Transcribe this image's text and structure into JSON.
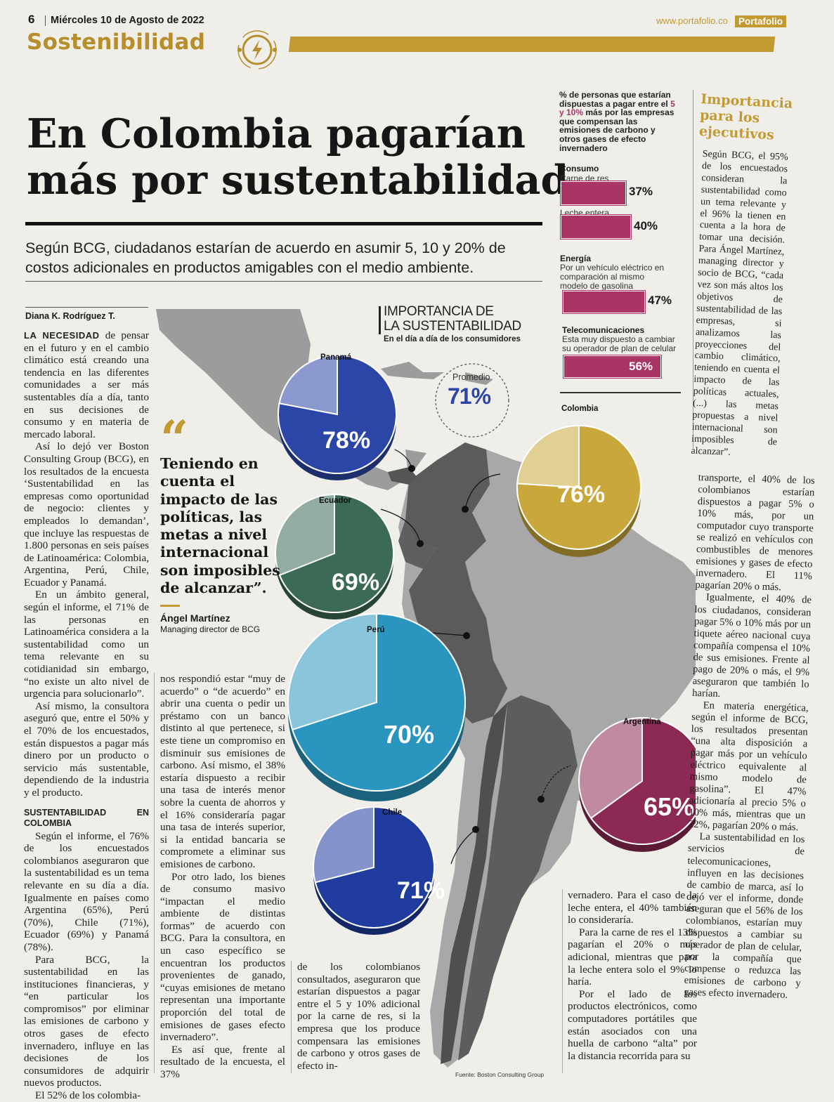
{
  "header": {
    "page_number": "6",
    "date": "Miércoles 10 de Agosto de 2022",
    "section": "Sostenibilidad",
    "website": "www.portafolio.co",
    "brand": "Portafolio"
  },
  "article": {
    "headline_line1": "En Colombia pagarían",
    "headline_line2": "más por sustentabilidad",
    "deck_line1": "Según BCG, ciudadanos estarían de acuerdo en asumir 5, 10 y 20% de",
    "deck_line2": "costos adicionales en productos amigables con el medio ambiente.",
    "byline": "Diana K. Rodríguez T.",
    "col1": [
      {
        "lead": "LA NECESIDAD",
        "text": " de pensar en el futuro y en el cambio climático está creando una tendencia en las diferentes comunidades a ser más sustentables día a día, tanto en sus decisiones de consumo y en materia de mercado laboral."
      },
      {
        "text": "Así lo dejó ver Boston Consulting Group (BCG), en los resultados de la encuesta ‘Sustentabilidad en las empresas como oportunidad de negocio: clientes y empleados lo demandan’, que incluye las respuestas de 1.800 personas en seis países de Latinoamérica: Colombia, Argentina, Perú, Chile, Ecuador y Panamá."
      },
      {
        "text": "En un ámbito general, según el informe, el 71% de las personas en Latinoamérica considera a la sustentabilidad como un tema relevante en su cotidianidad sin embargo, “no existe un alto nivel de urgencia para solucionarlo”."
      },
      {
        "text": "Así mismo, la consultora aseguró que, entre el 50% y el 70% de los encuestados, están dispuestos a pagar más dinero por un producto o servicio más sustentable, dependiendo de la industria y el producto."
      }
    ],
    "subhead": "SUSTENTABILIDAD EN COLOMBIA",
    "col1b": [
      {
        "text": "Según el informe, el 76% de los encuestados colombianos aseguraron que la sustentabilidad es un tema relevante en su día a día. Igualmente en países como Argentina (65%), Perú (70%), Chile (71%), Ecuador (69%) y Panamá (78%)."
      },
      {
        "text": "Para BCG, la sustentabilidad en las instituciones financieras, y “en particular los compromisos” por eliminar las emisiones de carbono y otros gases de efecto invernadero, influye en las decisiones de los consumidores de adquirir nuevos productos."
      },
      {
        "text": "El 52% de los colombia-"
      }
    ],
    "col2": [
      {
        "first": true,
        "text": "nos respondió estar “muy de acuerdo” o “de acuerdo” en abrir una cuenta o pedir un préstamo con un banco distinto al que pertenece, si este tiene un compromiso en disminuir sus emisiones de carbono. Así mismo, el 38% estaría dispuesto a recibir una tasa de interés menor sobre la cuenta de ahorros y el 16% consideraría pagar una tasa de interés superior, si la entidad bancaria se compromete a eliminar sus emisiones de carbono."
      },
      {
        "text": "Por otro lado, los bienes de consumo masivo “impactan el medio ambiente de distintas formas” de acuerdo con BCG. Para la consultora, en un caso específico se encuentran los productos provenientes de ganado, “cuyas emisiones de metano representan una importante proporción del total de emisiones de gases efecto invernadero”."
      },
      {
        "text": "Es así que, frente al resultado de la encuesta, el 37%"
      }
    ],
    "col3": [
      {
        "first": true,
        "text": "de los colombianos consultados, aseguraron que estarían dispuestos a pagar entre el 5 y 10% adicional por la carne de res, si la empresa que los produce compensara las emisiones de carbono y otros gases de efecto in-"
      }
    ],
    "col4": [
      {
        "first": true,
        "text": "vernadero. Para el caso de la leche entera, el 40% también lo consideraría."
      },
      {
        "text": "Para la carne de res el 13% pagarían el 20% o más adicional, mientras que para la leche entera solo el 9% lo haría."
      },
      {
        "text": "Por el lado de los productos electrónicos, como computadores portátiles que están asociados con una huella de carbono “alta” por la distancia recorrida para su"
      }
    ],
    "col5": [
      {
        "first": true,
        "text": "transporte, el 40% de los colombianos estarían dispuestos a pagar 5% o 10% más, por un computador cuyo transporte se realizó en vehículos con combustibles de menores emisiones y gases de efecto invernadero. El 11% pagarían 20% o más."
      },
      {
        "text": "Igualmente, el 40% de los ciudadanos, consideran pagar 5% o 10% más por un tiquete aéreo nacional cuya compañía compensa el 10% de sus emisiones. Frente al pago de 20% o más, el 9% aseguraron que también lo harían."
      },
      {
        "text": "En materia energética, según el informe de BCG, los resultados presentan “una alta disposición a pagar más por un vehículo eléctrico equivalente al mismo modelo de gasolina”. El 47% adicionaría al precio 5% o 10% más, mientras que un 22%, pagarían 20% o más."
      },
      {
        "text": "La sustentabilidad en los servicios de telecomunicaciones, influyen en las decisiones de cambio de marca, así lo dejó ver el informe, donde aseguran que el 56% de los colombianos, estarían muy dispuestos a cambiar su operador de plan de celular, por la compañía que compense o reduzca las emisiones de carbono y gases efecto invernadero."
      }
    ]
  },
  "quote": {
    "text": "Teniendo en cuenta el impacto de las políticas, las metas a nivel internacional son imposibles de alcanzar”.",
    "author": "Ángel Martínez",
    "role": "Managing director de BCG"
  },
  "sidebar": {
    "title": "Importancia para los ejecutivos",
    "text": "Según BCG, el 95% de los encuestados consideran la sustentabilidad como un tema relevante y el 96% la tienen en cuenta a la hora de tomar una decisión. Para Ángel Martínez, managing director y socio de BCG, “cada vez son más altos los objetivos de sustentabilidad de las empresas, si analizamos las proyecciones del cambio climático, teniendo en cuenta el impacto de las políticas actuales, (...) las metas propuestas a nivel internacional son imposibles de alcanzar”."
  },
  "bar_chart": {
    "title_pre": "% de personas que estarían dispuestas a pagar entre el ",
    "title_highlight": "5 y 10%",
    "title_post": " más por las empresas que compensan las emisiones de carbono y otros gases de efecto invernadero",
    "cat_consumo": "Consumo",
    "cat_energia": "Energía",
    "cat_tele": "Telecomunicaciones",
    "items": [
      {
        "label": "Carne de res",
        "display": "37%"
      },
      {
        "label": "Leche entera",
        "display": "40%"
      },
      {
        "label": "Por un vehículo eléctrico en comparación al mismo modelo de gasolina",
        "display": "47%"
      },
      {
        "label": "Esta muy dispuesto a cambiar su operador de plan de celular",
        "display": "56%"
      }
    ],
    "bar_color": "#a83566"
  },
  "map_chart": {
    "title_line1": "IMPORTANCIA DE",
    "title_line2": "LA SUSTENTABILIDAD",
    "subtitle": "En el día a día de los consumidores",
    "average_label": "Promedio",
    "average_value": "71%",
    "source": "Fuente: Boston Consulting Group",
    "pies": [
      {
        "country": "Panamá",
        "display": "78%",
        "color": "#2c46a8"
      },
      {
        "country": "Colombia",
        "display": "76%",
        "color": "#c9a73a"
      },
      {
        "country": "Ecuador",
        "display": "69%",
        "color": "#3b6a55"
      },
      {
        "country": "Perú",
        "display": "70%",
        "color": "#2a96bf"
      },
      {
        "country": "Argentina",
        "display": "65%",
        "color": "#8c2a55"
      },
      {
        "country": "Chile",
        "display": "71%",
        "color": "#1f3c9e"
      }
    ]
  },
  "chart_data": [
    {
      "type": "bar",
      "title": "% de personas que estarían dispuestas a pagar entre el 5 y 10% más por las empresas que compensan las emisiones de carbono y otros gases de efecto invernadero",
      "categories": [
        "Carne de res",
        "Leche entera",
        "Por un vehículo eléctrico en comparación al mismo modelo de gasolina",
        "Esta muy dispuesto a cambiar su operador de plan de celular"
      ],
      "values": [
        37,
        40,
        47,
        56
      ],
      "xlim": [
        0,
        100
      ]
    },
    {
      "type": "pie",
      "title": "IMPORTANCIA DE LA SUSTENTABILIDAD",
      "categories": [
        "Panamá",
        "Colombia",
        "Ecuador",
        "Perú",
        "Argentina",
        "Chile"
      ],
      "values": [
        78,
        76,
        69,
        70,
        65,
        71
      ]
    }
  ]
}
